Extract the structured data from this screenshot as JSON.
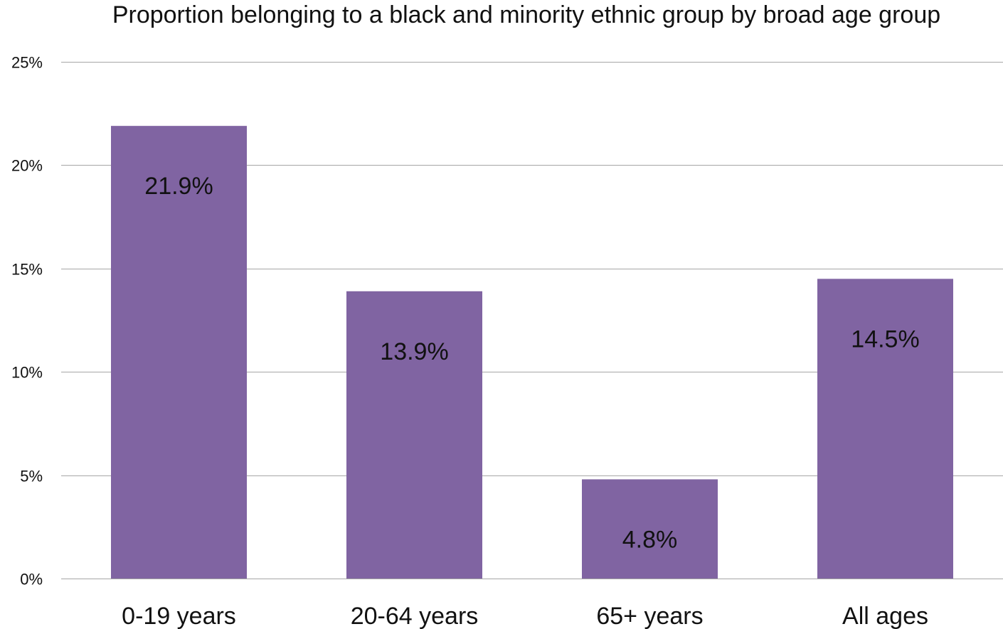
{
  "chart_data": {
    "type": "bar",
    "title": "Proportion belonging to a black and minority ethnic group by broad age group",
    "categories": [
      "0-19 years",
      "20-64 years",
      "65+ years",
      "All ages"
    ],
    "values": [
      21.9,
      13.9,
      4.8,
      14.5
    ],
    "data_labels": [
      "21.9%",
      "13.9%",
      "4.8%",
      "14.5%"
    ],
    "ylim": [
      0,
      25
    ],
    "yticks": [
      0,
      5,
      10,
      15,
      20,
      25
    ],
    "ytick_labels": [
      "0%",
      "5%",
      "10%",
      "15%",
      "20%",
      "25%"
    ],
    "xlabel": "",
    "ylabel": "",
    "grid": true,
    "legend": "none",
    "bar_color": "#8064A2",
    "gridline_color": "#A6A6A6",
    "text_color": "#111111"
  }
}
